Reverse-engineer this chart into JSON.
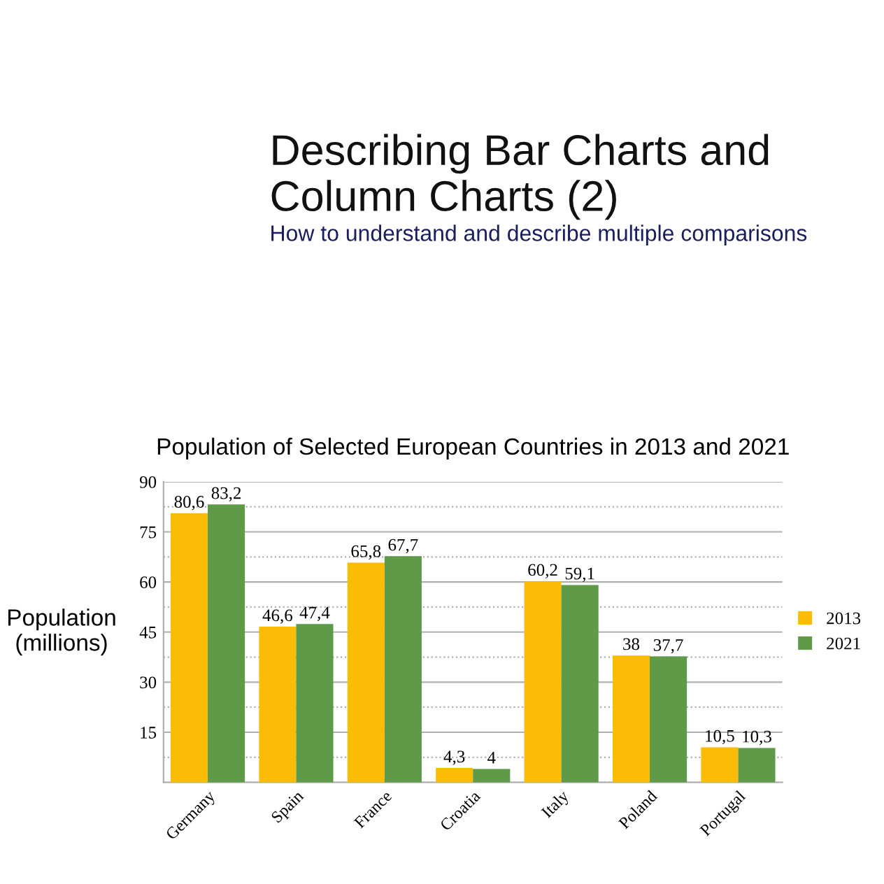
{
  "chart_data": {
    "type": "bar",
    "title": "Population of Selected European Countries in 2013 and 2021",
    "ylabel": "Population\n(millions)",
    "annotations": [
      "Describing Bar Charts and\nColumn Charts (2)",
      "How to understand and describe multiple comparisons"
    ],
    "categories": [
      "Germany",
      "Spain",
      "France",
      "Croatia",
      "Italy",
      "Poland",
      "Portugal"
    ],
    "series": [
      {
        "name": "2013",
        "color": "#fbbc05",
        "values": [
          80.6,
          46.6,
          65.8,
          4.3,
          60.2,
          38,
          10.5
        ],
        "value_labels": [
          "80,6",
          "46,6",
          "65,8",
          "4,3",
          "60,2",
          "38",
          "10,5"
        ]
      },
      {
        "name": "2021",
        "color": "#5e9a48",
        "values": [
          83.2,
          47.4,
          67.7,
          4,
          59.1,
          37.7,
          10.3
        ],
        "value_labels": [
          "83,2",
          "47,4",
          "67,7",
          "4",
          "59,1",
          "37,7",
          "10,3"
        ]
      }
    ],
    "ylim": [
      0,
      90
    ],
    "yticks": [
      {
        "value": 0,
        "label": null
      },
      {
        "value": 7.5,
        "label": null
      },
      15,
      {
        "value": 22.5,
        "label": null
      },
      30,
      {
        "value": 37.5,
        "label": null
      },
      45,
      {
        "value": 52.5,
        "label": null
      },
      60,
      {
        "value": 67.5,
        "label": null
      },
      75,
      {
        "value": 82.5,
        "label": null
      },
      90
    ],
    "grid": "y",
    "legend": "right"
  }
}
